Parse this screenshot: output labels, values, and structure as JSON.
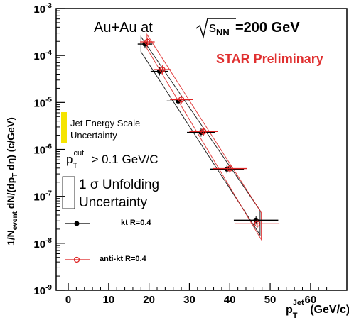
{
  "chart_data": {
    "type": "scatter",
    "title_main": "Au+Au at ",
    "title_sqrt": "s",
    "title_sub": "NN",
    "title_tail": "=200 GeV",
    "watermark": "STAR Preliminary",
    "ylabel_tex": "1/N_event dN/(dp_T dη) (c/GeV)",
    "ylabel_parts": {
      "p1": "1/N",
      "sub1": "event",
      "p2": " dN/(dp",
      "sub2": "T",
      "p3": " dη) (c/GeV)"
    },
    "xlabel_parts": {
      "p": "p",
      "sub": "T",
      "sup": "Jet",
      "unit": " (GeV/c)"
    },
    "xlim": [
      -3,
      69
    ],
    "ylim_log10": [
      -9,
      -3
    ],
    "y_scale": "log",
    "x_ticks": [
      0,
      10,
      20,
      30,
      40,
      50,
      60
    ],
    "y_ticks": [
      {
        "exp": -9,
        "label": "-9"
      },
      {
        "exp": -8,
        "label": "-8"
      },
      {
        "exp": -7,
        "label": "-7"
      },
      {
        "exp": -6,
        "label": "-6"
      },
      {
        "exp": -5,
        "label": "-5"
      },
      {
        "exp": -4,
        "label": "-4"
      },
      {
        "exp": -3,
        "label": "-3"
      }
    ],
    "y_tick_base": "10",
    "series": [
      {
        "name": "kt R=0.4",
        "color": "#000000",
        "marker": "filled-circle",
        "points": [
          {
            "x": 19.0,
            "y": 0.000175,
            "xerr": 1.8
          },
          {
            "x": 22.6,
            "y": 4.6e-05,
            "xerr": 2.2
          },
          {
            "x": 27.2,
            "y": 1.07e-05,
            "xerr": 2.8
          },
          {
            "x": 32.9,
            "y": 2.3e-06,
            "xerr": 3.5
          },
          {
            "x": 39.3,
            "y": 3.8e-07,
            "xerr": 4.2
          },
          {
            "x": 46.5,
            "y": 3.1e-08,
            "xerr": 5.5
          }
        ],
        "band": [
          {
            "x": 18.0,
            "lo": 0.00012,
            "hi": 0.00025
          },
          {
            "x": 47.5,
            "lo": 1.5e-08,
            "hi": 5e-08
          }
        ]
      },
      {
        "name": "anti-kt R=0.4",
        "color": "#dd2222",
        "marker": "open-circle",
        "points": [
          {
            "x": 19.6,
            "y": 0.000195,
            "xerr": 1.8
          },
          {
            "x": 23.3,
            "y": 5e-05,
            "xerr": 2.2
          },
          {
            "x": 28.0,
            "y": 1.15e-05,
            "xerr": 2.8
          },
          {
            "x": 33.5,
            "y": 2.4e-06,
            "xerr": 3.5
          },
          {
            "x": 40.0,
            "y": 3.9e-07,
            "xerr": 4.2
          },
          {
            "x": 46.8,
            "y": 2.6e-08,
            "xerr": 5.5
          }
        ],
        "band": [
          {
            "x": 19.5,
            "lo": 0.00014,
            "hi": 0.00028
          },
          {
            "x": 47.8,
            "lo": 1.2e-08,
            "hi": 4.5e-08
          }
        ]
      }
    ],
    "legend": {
      "jes_text_1": "Jet Energy Scale",
      "jes_text_2": "Uncertainty",
      "jes_color": "#f5e400",
      "cut_p": "p",
      "cut_sub": "T",
      "cut_sup": "cut",
      "cut_tail": "> 0.1 GeV/C",
      "unfold_text_1": "1 σ Unfolding",
      "unfold_text_2": "Uncertainty",
      "kt_label": "kt R=0.4",
      "antikt_label": "anti-kt R=0.4"
    },
    "watermark_color": "#e03030"
  }
}
